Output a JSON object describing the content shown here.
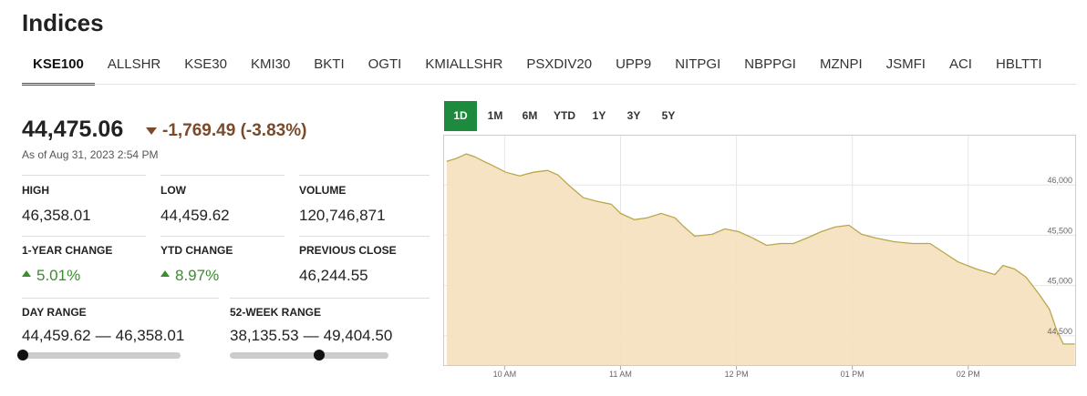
{
  "header": {
    "title": "Indices"
  },
  "tabs": {
    "items": [
      "KSE100",
      "ALLSHR",
      "KSE30",
      "KMI30",
      "BKTI",
      "OGTI",
      "KMIALLSHR",
      "PSXDIV20",
      "UPP9",
      "NITPGI",
      "NBPPGI",
      "MZNPI",
      "JSMFI",
      "ACI",
      "HBLTTI"
    ],
    "active": 0
  },
  "quote": {
    "price": "44,475.06",
    "change": "-1,769.49 (-3.83%)",
    "as_of": "As of Aug 31, 2023 2:54 PM"
  },
  "stats": [
    {
      "label": "HIGH",
      "value": "46,358.01"
    },
    {
      "label": "LOW",
      "value": "44,459.62"
    },
    {
      "label": "VOLUME",
      "value": "120,746,871"
    },
    {
      "label": "1-YEAR CHANGE",
      "value": "5.01%"
    },
    {
      "label": "YTD CHANGE",
      "value": "8.97%"
    },
    {
      "label": "PREVIOUS CLOSE",
      "value": "46,244.55"
    }
  ],
  "ranges": [
    {
      "label": "DAY RANGE",
      "low": "44,459.62",
      "separator": "—",
      "high": "46,358.01"
    },
    {
      "label": "52-WEEK RANGE",
      "low": "38,135.53",
      "separator": "—",
      "high": "49,404.50"
    }
  ],
  "periods": {
    "items": [
      "1D",
      "1M",
      "6M",
      "YTD",
      "1Y",
      "3Y",
      "5Y"
    ],
    "active": 0
  },
  "chart_data": {
    "type": "area",
    "color": "#b8a84a",
    "fill": "#f4e0bc",
    "grid": true,
    "x": [
      9.5,
      9.58,
      9.67,
      9.74,
      9.82,
      9.9,
      10.01,
      10.13,
      10.25,
      10.37,
      10.46,
      10.56,
      10.68,
      10.8,
      10.92,
      11.0,
      11.12,
      11.23,
      11.35,
      11.47,
      11.55,
      11.64,
      11.79,
      11.9,
      12.02,
      12.14,
      12.26,
      12.38,
      12.49,
      12.61,
      12.73,
      12.85,
      12.97,
      13.08,
      13.2,
      13.36,
      13.52,
      13.67,
      13.79,
      13.91,
      14.07,
      14.23,
      14.3,
      14.4,
      14.5,
      14.62,
      14.7,
      14.76,
      14.82,
      14.92
    ],
    "values": [
      46236,
      46264,
      46309,
      46282,
      46236,
      46191,
      46127,
      46091,
      46127,
      46145,
      46100,
      45991,
      45873,
      45836,
      45809,
      45718,
      45655,
      45673,
      45718,
      45673,
      45582,
      45491,
      45509,
      45564,
      45536,
      45473,
      45400,
      45418,
      45418,
      45473,
      45536,
      45582,
      45600,
      45509,
      45473,
      45436,
      45418,
      45418,
      45327,
      45236,
      45164,
      45109,
      45200,
      45164,
      45082,
      44900,
      44764,
      44564,
      44418,
      44418
    ],
    "xlim": [
      9.47,
      14.93
    ],
    "ylim": [
      44200,
      46500
    ],
    "xticks": [
      {
        "value": 10,
        "label": "10 AM"
      },
      {
        "value": 11,
        "label": "11 AM"
      },
      {
        "value": 12,
        "label": "12 PM"
      },
      {
        "value": 13,
        "label": "01 PM"
      },
      {
        "value": 14,
        "label": "02 PM"
      }
    ],
    "yticks": [
      {
        "value": 44500,
        "label": "44,500"
      },
      {
        "value": 45000,
        "label": "45,000"
      },
      {
        "value": 45500,
        "label": "45,500"
      },
      {
        "value": 46000,
        "label": "46,000"
      }
    ]
  }
}
